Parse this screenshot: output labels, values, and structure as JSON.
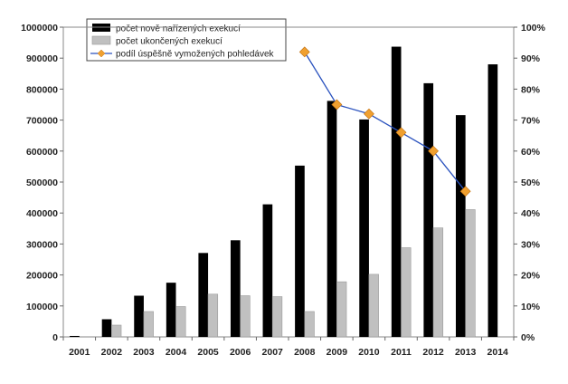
{
  "chart_data": {
    "type": "bar",
    "categories": [
      "2001",
      "2002",
      "2003",
      "2004",
      "2005",
      "2006",
      "2007",
      "2008",
      "2009",
      "2010",
      "2011",
      "2012",
      "2013",
      "2014"
    ],
    "series": [
      {
        "name": "počet nově nařízených exekucí",
        "type": "bar",
        "axis": "left",
        "color": "#000000",
        "values": [
          3000,
          57000,
          133000,
          175000,
          271000,
          312000,
          428000,
          553000,
          762000,
          702000,
          937000,
          819000,
          716000,
          880000
        ]
      },
      {
        "name": "počet ukončených exekucí",
        "type": "bar",
        "axis": "left",
        "color": "#c0c0c0",
        "values": [
          0,
          38000,
          82000,
          98000,
          138000,
          133000,
          130000,
          82000,
          178000,
          202000,
          288000,
          352000,
          411000,
          0
        ]
      },
      {
        "name": "podíl úspěšně vymožených pohledávek",
        "type": "line",
        "axis": "right",
        "color": "#2a52be",
        "marker_color": "#f0a030",
        "values": [
          null,
          null,
          null,
          null,
          null,
          null,
          null,
          0.92,
          0.75,
          0.72,
          0.66,
          0.6,
          0.47,
          null
        ]
      }
    ],
    "y_left": {
      "ylim": [
        0,
        1000000
      ],
      "ticks": [
        0,
        100000,
        200000,
        300000,
        400000,
        500000,
        600000,
        700000,
        800000,
        900000,
        1000000
      ],
      "tick_labels": [
        "0",
        "100000",
        "200000",
        "300000",
        "400000",
        "500000",
        "600000",
        "700000",
        "800000",
        "900000",
        "1000000"
      ]
    },
    "y_right": {
      "ylim": [
        0,
        1
      ],
      "ticks": [
        0,
        0.1,
        0.2,
        0.3,
        0.4,
        0.5,
        0.6,
        0.7,
        0.8,
        0.9,
        1.0
      ],
      "tick_labels": [
        "0%",
        "10%",
        "20%",
        "30%",
        "40%",
        "50%",
        "60%",
        "70%",
        "80%",
        "90%",
        "100%"
      ]
    },
    "legend": {
      "placement": "top-left",
      "entries": [
        "počet nově nařízených exekucí",
        "počet ukončených exekucí",
        "podíl úspěšně vymožených pohledávek"
      ]
    },
    "grid": false
  }
}
